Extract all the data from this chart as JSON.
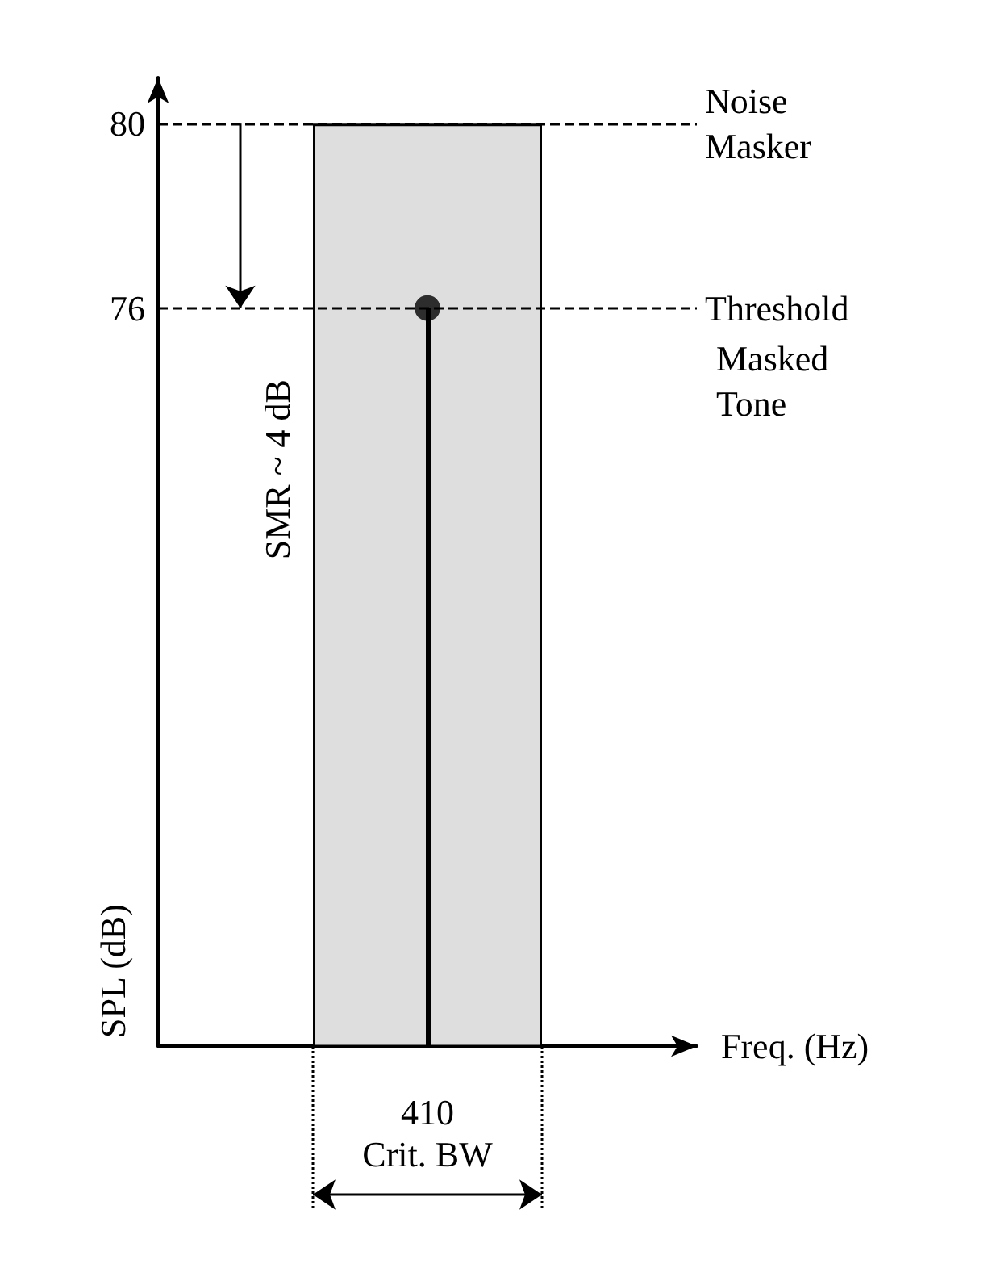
{
  "chart_data": {
    "type": "bar",
    "xlabel": "Freq. (Hz)",
    "ylabel": "SPL (dB)",
    "categories": [
      "410"
    ],
    "ylim": [
      60,
      81
    ],
    "yticks": [
      76,
      80
    ],
    "grid": false,
    "marker": "circle",
    "series": [
      {
        "type": "bar",
        "color": "#dedede",
        "values": [
          80
        ]
      },
      {
        "type": "lollipop",
        "color": "#000000",
        "values": [
          76
        ]
      }
    ],
    "ref_lines": [
      {
        "axis": "y",
        "value": 80,
        "label": "Noise Masker",
        "line_style": "dashed",
        "color": "#000000"
      },
      {
        "axis": "y",
        "value": 76,
        "label": "Threshold",
        "line_style": "dashed",
        "color": "#000000"
      }
    ],
    "annotations": [
      "SMR ~ 4 dB",
      "Masked Tone",
      "Crit. BW"
    ]
  }
}
